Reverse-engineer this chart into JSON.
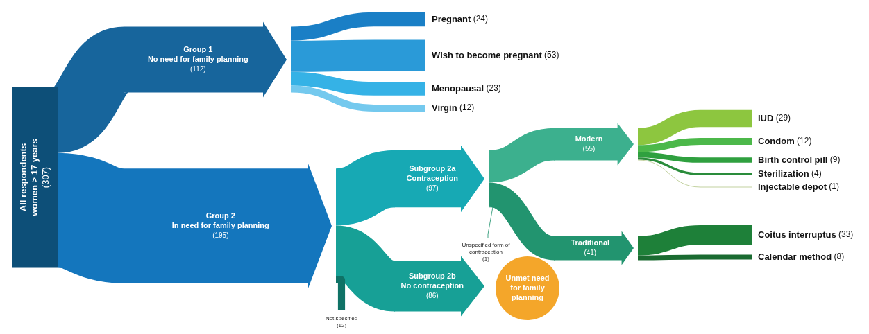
{
  "chart_data": {
    "type": "other",
    "categories": [
      "All respondents\nwomen > 17 years",
      "Group 1\nNo need for family planning",
      "Group 2\nIn need for family planning",
      "Pregnant",
      "Wish to become pregnant",
      "Menopausal",
      "Virgin",
      "Subgroup 2a\nContraception",
      "Subgroup 2b\nNo contraception",
      "Not specified",
      "Modern",
      "Traditional",
      "Unspecified form of\ncontraception",
      "IUD",
      "Condom",
      "Birth control pill",
      "Sterilization",
      "Injectable depot",
      "Coitus interruptus",
      "Calendar method",
      "Unmet need\nfor family\nplanning"
    ],
    "values": [
      307,
      112,
      195,
      24,
      53,
      23,
      12,
      97,
      86,
      12,
      55,
      41,
      1,
      29,
      12,
      9,
      4,
      1,
      33,
      8,
      null
    ],
    "value_labels": [
      "(307)",
      "(112)",
      "(195)",
      "(24)",
      "(53)",
      "(23)",
      "(12)",
      "(97)",
      "(86)",
      "(12)",
      "(55)",
      "(41)",
      "(1)",
      "(29)",
      "(12)",
      "(9)",
      "(4)",
      "(1)",
      "(33)",
      "(8)",
      null
    ],
    "colors": [
      "#0d4f78",
      "#17659c",
      "#1476bd",
      "#1a7fc6",
      "#2a9ad8",
      "#35b2e6",
      "#74c9ee",
      "#17a9b4",
      "#17a096",
      "#0f7266",
      "#3cb08e",
      "#22946f",
      "#22946f",
      "#8dc63f",
      "#4cb84a",
      "#2fa03f",
      "#2a8c3b",
      "#b7c98e",
      "#1e8039",
      "#1a6b31",
      "#f4a62a"
    ]
  }
}
